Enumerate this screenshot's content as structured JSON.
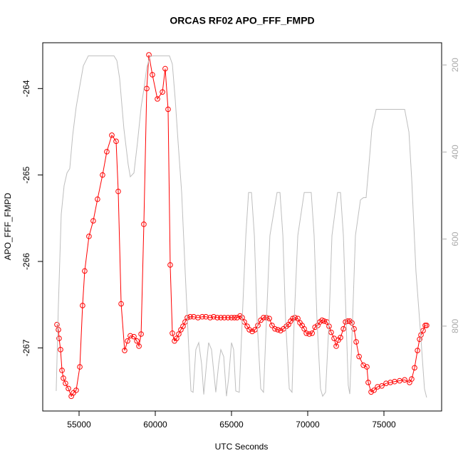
{
  "chart_data": {
    "type": "line",
    "title": "ORCAS RF02 APO_FFF_FMPD",
    "xlabel": "UTC Seconds",
    "ylabel": "APO_FFF_FMPD",
    "xlim": [
      52617,
      78785
    ],
    "xticks": [
      55000,
      60000,
      65000,
      70000,
      75000
    ],
    "ylim": [
      -267.73,
      -263.47
    ],
    "yticks": [
      -267,
      -266,
      -265,
      -264
    ],
    "y2lim": [
      995,
      149
    ],
    "y2ticks": [
      200,
      400,
      600,
      800
    ],
    "y2color": "#aaaaaa",
    "series": [
      {
        "color": "#ff0000",
        "marker": "circle",
        "x": [
          53550,
          53645,
          53690,
          53785,
          53880,
          53970,
          54110,
          54300,
          54490,
          54630,
          54810,
          55050,
          55230,
          55370,
          55650,
          55930,
          56210,
          56540,
          56820,
          57150,
          57430,
          57570,
          57760,
          57990,
          58180,
          58360,
          58600,
          58790,
          58930,
          59070,
          59250,
          59440,
          59580,
          59810,
          60140,
          60470,
          60650,
          60840,
          60980,
          61120,
          61260,
          61400,
          61540,
          61680,
          61820,
          61960,
          62100,
          62290,
          62520,
          62800,
          63080,
          63320,
          63600,
          63830,
          64070,
          64300,
          64530,
          64770,
          65000,
          65190,
          65370,
          65560,
          65700,
          65840,
          66030,
          66170,
          66360,
          66540,
          66730,
          66920,
          67100,
          67290,
          67480,
          67660,
          67850,
          68040,
          68220,
          68410,
          68600,
          68740,
          68880,
          69020,
          69160,
          69350,
          69490,
          69630,
          69770,
          69910,
          70100,
          70290,
          70480,
          70660,
          70800,
          70940,
          71080,
          71260,
          71400,
          71540,
          71730,
          71870,
          72010,
          72150,
          72340,
          72480,
          72620,
          72760,
          72900,
          73040,
          73180,
          73370,
          73650,
          73880,
          73970,
          74160,
          74350,
          74580,
          74860,
          75140,
          75420,
          75700,
          76030,
          76360,
          76680,
          76820,
          77010,
          77200,
          77340,
          77430,
          77570,
          77710,
          77800
        ],
        "values": [
          -266.73,
          -266.79,
          -266.89,
          -267.02,
          -267.26,
          -267.35,
          -267.41,
          -267.47,
          -267.56,
          -267.52,
          -267.49,
          -267.22,
          -266.51,
          -266.11,
          -265.71,
          -265.53,
          -265.28,
          -265.0,
          -264.73,
          -264.54,
          -264.61,
          -265.19,
          -266.49,
          -267.03,
          -266.92,
          -266.86,
          -266.87,
          -266.92,
          -266.98,
          -266.84,
          -265.57,
          -264.0,
          -263.61,
          -263.84,
          -264.12,
          -264.04,
          -263.77,
          -264.24,
          -266.04,
          -266.83,
          -266.92,
          -266.89,
          -266.84,
          -266.79,
          -266.75,
          -266.7,
          -266.65,
          -266.64,
          -266.64,
          -266.65,
          -266.64,
          -266.64,
          -266.65,
          -266.64,
          -266.65,
          -266.65,
          -266.65,
          -266.65,
          -266.65,
          -266.65,
          -266.65,
          -266.63,
          -266.65,
          -266.7,
          -266.75,
          -266.79,
          -266.81,
          -266.79,
          -266.74,
          -266.68,
          -266.65,
          -266.65,
          -266.66,
          -266.74,
          -266.78,
          -266.79,
          -266.8,
          -266.78,
          -266.75,
          -266.73,
          -266.69,
          -266.66,
          -266.65,
          -266.66,
          -266.71,
          -266.74,
          -266.78,
          -266.83,
          -266.84,
          -266.83,
          -266.76,
          -266.74,
          -266.7,
          -266.68,
          -266.69,
          -266.7,
          -266.75,
          -266.82,
          -266.89,
          -266.98,
          -266.91,
          -266.88,
          -266.78,
          -266.7,
          -266.69,
          -266.69,
          -266.71,
          -266.78,
          -266.93,
          -267.1,
          -267.2,
          -267.22,
          -267.4,
          -267.51,
          -267.49,
          -267.45,
          -267.44,
          -267.41,
          -267.4,
          -267.39,
          -267.38,
          -267.37,
          -267.4,
          -267.36,
          -267.23,
          -267.03,
          -266.9,
          -266.85,
          -266.8,
          -266.74,
          -266.74
        ]
      },
      {
        "color": "#bebebe",
        "axis": "y2",
        "x": [
          53500,
          53640,
          53830,
          54020,
          54210,
          54390,
          54580,
          54810,
          55050,
          55280,
          55610,
          57290,
          57480,
          57660,
          57940,
          58220,
          58360,
          58600,
          58830,
          59070,
          59250,
          59440,
          59630,
          59810,
          60930,
          61120,
          61310,
          61500,
          61730,
          61960,
          62200,
          62340,
          62480,
          62660,
          62850,
          63040,
          63180,
          63360,
          63500,
          63690,
          63830,
          63970,
          64160,
          64300,
          64490,
          64670,
          64810,
          65000,
          65140,
          65280,
          65510,
          65700,
          65940,
          66120,
          66310,
          66500,
          66680,
          66920,
          67100,
          67290,
          67520,
          67990,
          68180,
          68370,
          68550,
          68790,
          68970,
          69110,
          69350,
          69770,
          70230,
          70420,
          70610,
          70840,
          70980,
          71170,
          71400,
          71590,
          71960,
          72150,
          72340,
          72520,
          72660,
          72760,
          72940,
          73130,
          73460,
          73650,
          73830,
          74020,
          74210,
          74490,
          76360,
          76640,
          76820,
          77100,
          77380,
          77660,
          77800
        ],
        "values": [
          949,
          756,
          543,
          477,
          448,
          438,
          362,
          297,
          248,
          202,
          179,
          179,
          190,
          231,
          346,
          428,
          457,
          448,
          379,
          297,
          256,
          207,
          182,
          179,
          179,
          198,
          280,
          379,
          493,
          674,
          854,
          949,
          952,
          854,
          838,
          887,
          957,
          887,
          838,
          854,
          903,
          952,
          887,
          854,
          870,
          961,
          920,
          838,
          854,
          949,
          952,
          788,
          592,
          493,
          493,
          592,
          788,
          944,
          952,
          788,
          592,
          493,
          493,
          592,
          788,
          944,
          952,
          788,
          592,
          493,
          493,
          592,
          788,
          944,
          961,
          952,
          788,
          592,
          493,
          493,
          592,
          788,
          936,
          956,
          788,
          592,
          510,
          505,
          505,
          428,
          346,
          302,
          302,
          354,
          461,
          674,
          805,
          944,
          964
        ]
      }
    ]
  }
}
